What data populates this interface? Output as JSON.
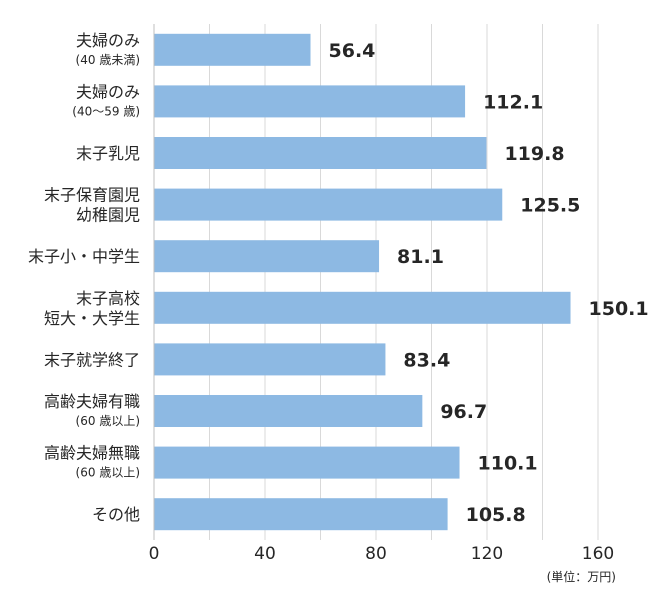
{
  "chart_data": {
    "type": "bar",
    "orientation": "horizontal",
    "categories": [
      {
        "main": "夫婦のみ",
        "sub": "(40 歳未満)"
      },
      {
        "main": "夫婦のみ",
        "sub": "(40～59 歳)"
      },
      {
        "main": "末子乳児",
        "sub": ""
      },
      {
        "main": "末子保育園児",
        "sub": "幼稚園児",
        "sub_style": "main"
      },
      {
        "main": "末子小・中学生",
        "sub": ""
      },
      {
        "main": "末子高校",
        "sub": "短大・大学生",
        "sub_style": "main"
      },
      {
        "main": "末子就学終了",
        "sub": ""
      },
      {
        "main": "高齢夫婦有職",
        "sub": "(60 歳以上)"
      },
      {
        "main": "高齢夫婦無職",
        "sub": "(60 歳以上)"
      },
      {
        "main": "その他",
        "sub": ""
      }
    ],
    "values": [
      56.4,
      112.1,
      119.8,
      125.5,
      81.1,
      150.1,
      83.4,
      96.7,
      110.1,
      105.8
    ],
    "value_labels": [
      "56.4",
      "112.1",
      "119.8",
      "125.5",
      "81.1",
      "150.1",
      "83.4",
      "96.7",
      "110.1",
      "105.8"
    ],
    "xlim": [
      0,
      160
    ],
    "xticks": [
      "0",
      "40",
      "80",
      "120",
      "160"
    ],
    "unit": "(単位：万円)",
    "grid": true,
    "bar_color": "#8db9e3",
    "grid_color": "#d9d9d9",
    "axis_color": "#bfbfbf"
  }
}
